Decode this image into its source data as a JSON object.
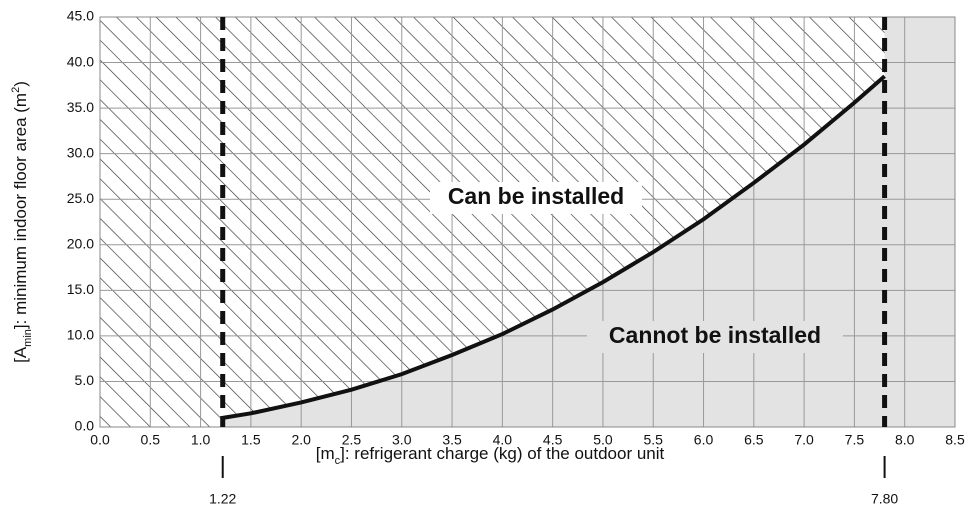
{
  "chart_data": {
    "type": "line",
    "x": [
      1.22,
      1.5,
      2.0,
      2.5,
      3.0,
      3.5,
      4.0,
      4.5,
      5.0,
      5.5,
      6.0,
      6.5,
      7.0,
      7.5,
      7.8
    ],
    "values": [
      1.0,
      1.5,
      2.7,
      4.1,
      5.8,
      7.9,
      10.2,
      12.9,
      15.9,
      19.2,
      22.8,
      26.8,
      31.0,
      35.6,
      38.5
    ],
    "color": "#111111",
    "xlabel": [
      "[m",
      "c",
      "]: refrigerant charge (kg) of the outdoor unit"
    ],
    "ylabel": [
      "[A",
      "min",
      "]: minimum indoor floor area (m",
      "2",
      ")"
    ],
    "xlim": [
      0,
      8.5
    ],
    "ylim": [
      0,
      45
    ],
    "xticks": [
      {
        "value": 0,
        "label": "0.0"
      },
      0.5,
      {
        "value": 1,
        "label": "1.0"
      },
      1.5,
      {
        "value": 2,
        "label": "2.0"
      },
      2.5,
      {
        "value": 3,
        "label": "3.0"
      },
      3.5,
      {
        "value": 4,
        "label": "4.0"
      },
      4.5,
      {
        "value": 5,
        "label": "5.0"
      },
      5.5,
      {
        "value": 6,
        "label": "6.0"
      },
      6.5,
      {
        "value": 7,
        "label": "7.0"
      },
      7.5,
      {
        "value": 8,
        "label": "8.0"
      },
      8.5
    ],
    "yticks": [
      {
        "value": 0,
        "label": "0.0"
      },
      {
        "value": 5,
        "label": "5.0"
      },
      {
        "value": 10,
        "label": "10.0"
      },
      {
        "value": 15,
        "label": "15.0"
      },
      {
        "value": 20,
        "label": "20.0"
      },
      {
        "value": 25,
        "label": "25.0"
      },
      {
        "value": 30,
        "label": "30.0"
      },
      {
        "value": 35,
        "label": "35.0"
      },
      {
        "value": 40,
        "label": "40.0"
      },
      {
        "value": 45,
        "label": "45.0"
      }
    ],
    "grid": true,
    "markers": [
      {
        "x": 1.22,
        "label": "1.22"
      },
      {
        "x": 7.8,
        "label": "7.80"
      }
    ],
    "annotations": [
      "Can be installed",
      "Cannot be installed"
    ]
  }
}
